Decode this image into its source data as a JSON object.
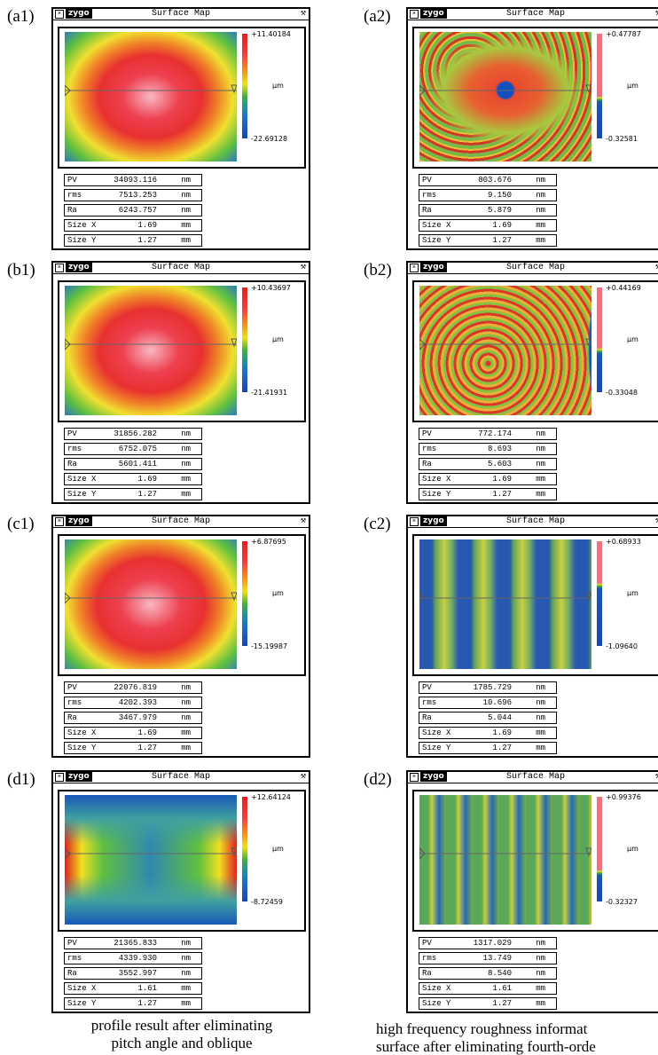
{
  "panels": [
    {
      "label": "(a1)",
      "logo": "zygo",
      "title": "Surface Map",
      "scale_max": "+11.40184",
      "scale_min": "-22.69128",
      "unit": "μm",
      "stats": [
        [
          "PV",
          "34093.116",
          "nm"
        ],
        [
          "rms",
          "7513.253",
          "nm"
        ],
        [
          "Ra",
          "6243.757",
          "nm"
        ],
        [
          "Size X",
          "1.69",
          "mm"
        ],
        [
          "Size Y",
          "1.27",
          "mm"
        ]
      ]
    },
    {
      "label": "(a2)",
      "logo": "zygo",
      "title": "Surface Map",
      "scale_max": "+0.47787",
      "scale_min": "-0.32581",
      "unit": "μm",
      "stats": [
        [
          "PV",
          "803.676",
          "nm"
        ],
        [
          "rms",
          "9.150",
          "nm"
        ],
        [
          "Ra",
          "5.879",
          "nm"
        ],
        [
          "Size X",
          "1.69",
          "mm"
        ],
        [
          "Size Y",
          "1.27",
          "mm"
        ]
      ]
    },
    {
      "label": "(b1)",
      "logo": "zygo",
      "title": "Surface Map",
      "scale_max": "+10.43697",
      "scale_min": "-21.41931",
      "unit": "μm",
      "stats": [
        [
          "PV",
          "31856.282",
          "nm"
        ],
        [
          "rms",
          "6752.075",
          "nm"
        ],
        [
          "Ra",
          "5601.411",
          "nm"
        ],
        [
          "Size X",
          "1.69",
          "mm"
        ],
        [
          "Size Y",
          "1.27",
          "mm"
        ]
      ]
    },
    {
      "label": "(b2)",
      "logo": "zygo",
      "title": "Surface Map",
      "scale_max": "+0.44169",
      "scale_min": "-0.33048",
      "unit": "μm",
      "stats": [
        [
          "PV",
          "772.174",
          "nm"
        ],
        [
          "rms",
          "8.693",
          "nm"
        ],
        [
          "Ra",
          "5.603",
          "nm"
        ],
        [
          "Size X",
          "1.69",
          "mm"
        ],
        [
          "Size Y",
          "1.27",
          "mm"
        ]
      ]
    },
    {
      "label": "(c1)",
      "logo": "zygo",
      "title": "Surface Map",
      "scale_max": "+6.87695",
      "scale_min": "-15.19987",
      "unit": "μm",
      "stats": [
        [
          "PV",
          "22076.819",
          "nm"
        ],
        [
          "rms",
          "4202.393",
          "nm"
        ],
        [
          "Ra",
          "3467.979",
          "nm"
        ],
        [
          "Size X",
          "1.69",
          "mm"
        ],
        [
          "Size Y",
          "1.27",
          "mm"
        ]
      ]
    },
    {
      "label": "(c2)",
      "logo": "zygo",
      "title": "Surface Map",
      "scale_max": "+0.68933",
      "scale_min": "-1.09640",
      "unit": "μm",
      "stats": [
        [
          "PV",
          "1785.729",
          "nm"
        ],
        [
          "rms",
          "10.696",
          "nm"
        ],
        [
          "Ra",
          "5.044",
          "nm"
        ],
        [
          "Size X",
          "1.69",
          "mm"
        ],
        [
          "Size Y",
          "1.27",
          "mm"
        ]
      ]
    },
    {
      "label": "(d1)",
      "logo": "zygo",
      "title": "Surface Map",
      "scale_max": "+12.64124",
      "scale_min": "-8.72459",
      "unit": "μm",
      "stats": [
        [
          "PV",
          "21365.833",
          "nm"
        ],
        [
          "rms",
          "4339.930",
          "nm"
        ],
        [
          "Ra",
          "3552.997",
          "nm"
        ],
        [
          "Size X",
          "1.61",
          "mm"
        ],
        [
          "Size Y",
          "1.27",
          "mm"
        ]
      ]
    },
    {
      "label": "(d2)",
      "logo": "zygo",
      "title": "Surface Map",
      "scale_max": "+0.99376",
      "scale_min": "-0.32327",
      "unit": "μm",
      "stats": [
        [
          "PV",
          "1317.029",
          "nm"
        ],
        [
          "rms",
          "13.749",
          "nm"
        ],
        [
          "Ra",
          "8.540",
          "nm"
        ],
        [
          "Size X",
          "1.61",
          "mm"
        ],
        [
          "Size Y",
          "1.27",
          "mm"
        ]
      ]
    }
  ],
  "captions": {
    "left": [
      "profile result after eliminating",
      "pitch angle and oblique"
    ],
    "right": [
      "high frequency roughness informat",
      "surface after eliminating fourth-orde"
    ]
  }
}
